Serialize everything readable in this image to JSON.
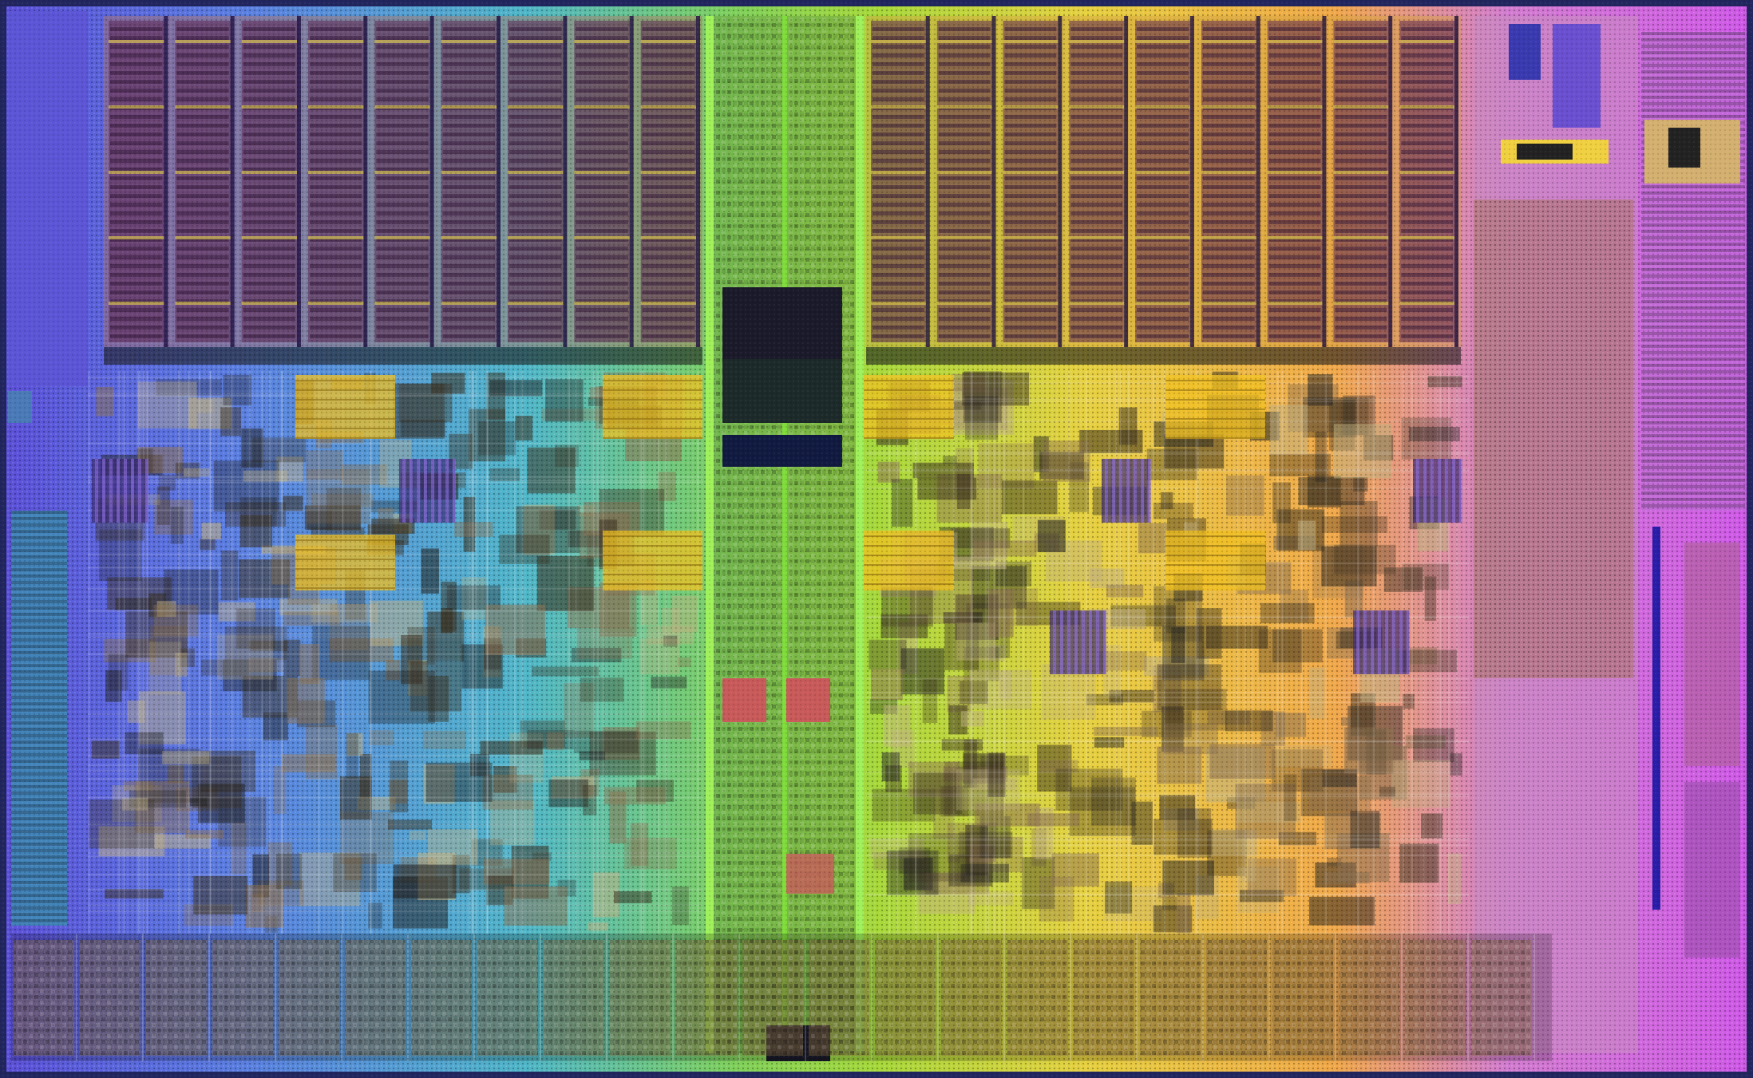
{
  "image": {
    "subject": "",
    "colors": {
      "frame": "#2a2f6e",
      "cache_line_dark": "#2a1030",
      "cache_line_yellow": "#e8d64a",
      "io_cell": "#c8a060",
      "spine": "#7fdc3a"
    },
    "blocks": [
      "l2-cache-bank-left",
      "l2-cache-bank-right",
      "core-left",
      "core-center-left",
      "core-center-right",
      "core-right",
      "central-spine",
      "uncore-right",
      "io-pad-row-bottom",
      "io-column-left",
      "io-column-right"
    ]
  }
}
